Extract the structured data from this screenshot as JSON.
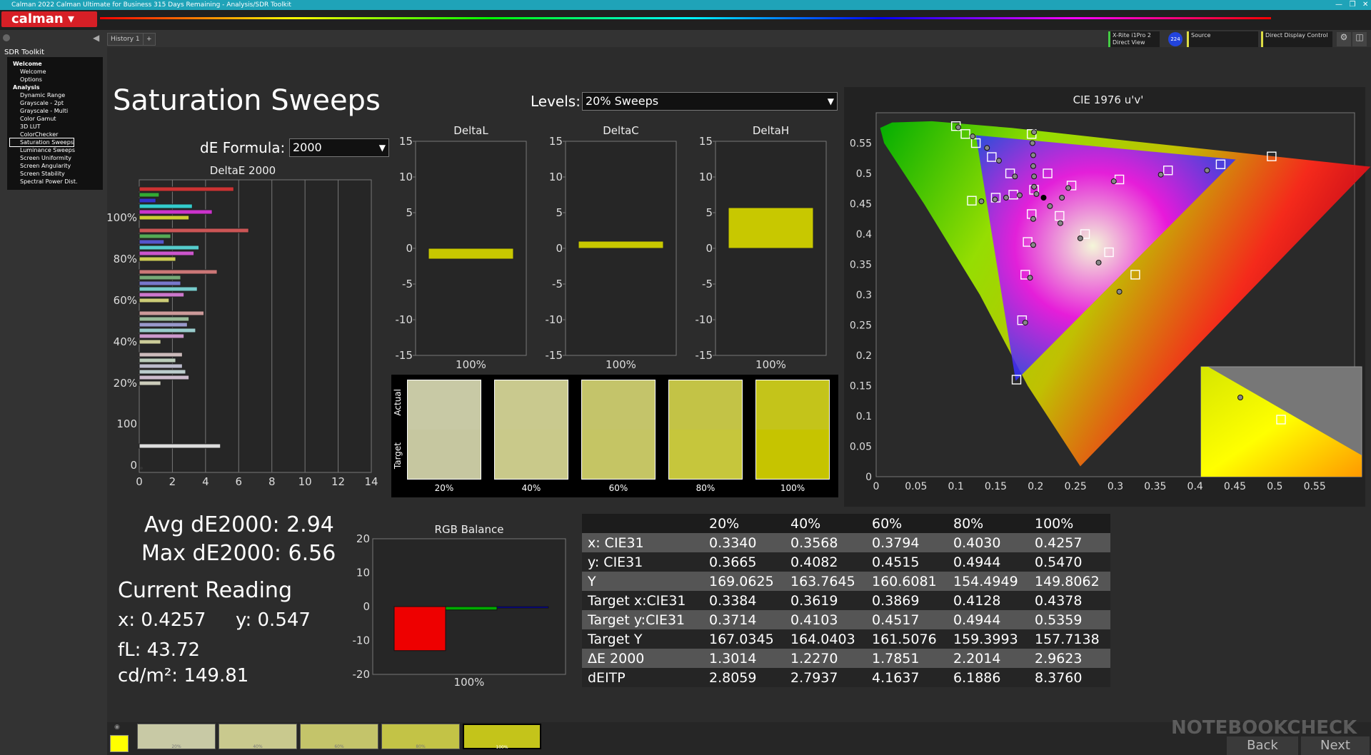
{
  "window": {
    "title": "Calman 2022 Calman Ultimate for Business 315 Days Remaining - Analysis/SDR Toolkit",
    "logo": "calman"
  },
  "toolbar": {
    "history_tab": "History 1",
    "devices": [
      {
        "line1": "X-Rite i1Pro 2",
        "line2": "Direct View",
        "badge": "224"
      },
      {
        "line1": "Source",
        "line2": ""
      },
      {
        "line1": "Direct Display Control",
        "line2": ""
      }
    ]
  },
  "sidebar": {
    "title": "SDR Toolkit",
    "items": [
      "Welcome",
      "Welcome",
      "Options",
      "Analysis",
      "Dynamic Range",
      "Grayscale - 2pt",
      "Grayscale - Multi",
      "Color Gamut",
      "3D LUT",
      "ColorChecker",
      "Saturation Sweeps",
      "Luminance Sweeps",
      "Screen Uniformity",
      "Screen Angularity",
      "Screen Stability",
      "Spectral Power Dist."
    ],
    "selected": "Saturation Sweeps"
  },
  "page": {
    "title": "Saturation Sweeps",
    "levels_label": "Levels:",
    "levels_value": "20% Sweeps",
    "de_formula_label": "dE Formula:",
    "de_formula_value": "2000"
  },
  "stats": {
    "avg": "Avg dE2000: 2.94",
    "max": "Max dE2000: 6.56",
    "current_title": "Current Reading",
    "x": "x: 0.4257",
    "y": "y: 0.547",
    "fl": "fL: 43.72",
    "cdm2": "cd/m²: 149.81"
  },
  "swatches": {
    "actual_label": "Actual",
    "target_label": "Target",
    "labels": [
      "20%",
      "40%",
      "60%",
      "80%",
      "100%"
    ],
    "actual_colors": [
      "#c8c9a5",
      "#c9c98e",
      "#c4c46a",
      "#c3c346",
      "#c4c41a"
    ],
    "target_colors": [
      "#c6c7a0",
      "#c9c98a",
      "#c5c564",
      "#c6c63c",
      "#c6c400"
    ]
  },
  "table": {
    "columns": [
      "20%",
      "40%",
      "60%",
      "80%",
      "100%"
    ],
    "rows": [
      {
        "label": "x: CIE31",
        "values": [
          "0.3340",
          "0.3568",
          "0.3794",
          "0.4030",
          "0.4257"
        ]
      },
      {
        "label": "y: CIE31",
        "values": [
          "0.3665",
          "0.4082",
          "0.4515",
          "0.4944",
          "0.5470"
        ]
      },
      {
        "label": "Y",
        "values": [
          "169.0625",
          "163.7645",
          "160.6081",
          "154.4949",
          "149.8062"
        ]
      },
      {
        "label": "Target x:CIE31",
        "values": [
          "0.3384",
          "0.3619",
          "0.3869",
          "0.4128",
          "0.4378"
        ]
      },
      {
        "label": "Target y:CIE31",
        "values": [
          "0.3714",
          "0.4103",
          "0.4517",
          "0.4944",
          "0.5359"
        ]
      },
      {
        "label": "Target Y",
        "values": [
          "167.0345",
          "164.0403",
          "161.5076",
          "159.3993",
          "157.7138"
        ]
      },
      {
        "label": "ΔE 2000",
        "values": [
          "1.3014",
          "1.2270",
          "1.7851",
          "2.2014",
          "2.9623"
        ]
      },
      {
        "label": "dEITP",
        "values": [
          "2.8059",
          "2.7937",
          "4.1637",
          "6.1886",
          "8.3760"
        ]
      }
    ]
  },
  "bottom": {
    "thumbs": [
      "20%",
      "40%",
      "60%",
      "80%",
      "100%"
    ],
    "thumb_colors": [
      "#c8c9a5",
      "#c9c98e",
      "#c4c46a",
      "#c3c346",
      "#c4c41a"
    ],
    "back": "Back",
    "next": "Next",
    "watermark": "NOTEBOOKCHECK"
  },
  "chart_data": [
    {
      "type": "bar",
      "title": "DeltaE 2000",
      "orientation": "horizontal",
      "xlim": [
        0,
        14
      ],
      "xticks": [
        "0",
        "2",
        "4",
        "6",
        "8",
        "10",
        "12",
        "14"
      ],
      "yticks": [
        "100%",
        "80%",
        "60%",
        "40%",
        "20%",
        "100",
        "0"
      ],
      "groups": [
        {
          "label": "100%",
          "values": [
            5.7,
            1.2,
            1.0,
            3.2,
            4.4,
            3.0
          ],
          "colors": [
            "#c33",
            "#3a3",
            "#33c",
            "#3cc",
            "#c3c",
            "#cc3"
          ]
        },
        {
          "label": "80%",
          "values": [
            6.6,
            1.9,
            1.5,
            3.6,
            3.3,
            2.2
          ],
          "colors": [
            "#c55",
            "#5a5",
            "#55c",
            "#5cc",
            "#c5c",
            "#cc5"
          ]
        },
        {
          "label": "60%",
          "values": [
            4.7,
            2.5,
            2.5,
            3.5,
            2.7,
            1.8
          ],
          "colors": [
            "#c77",
            "#7a7",
            "#77c",
            "#7cc",
            "#c7c",
            "#cc7"
          ]
        },
        {
          "label": "40%",
          "values": [
            3.9,
            3.0,
            2.9,
            3.4,
            2.7,
            1.3
          ],
          "colors": [
            "#c99",
            "#9b9",
            "#99c",
            "#9cc",
            "#c9c",
            "#cc9"
          ]
        },
        {
          "label": "20%",
          "values": [
            2.6,
            2.2,
            2.6,
            2.8,
            3.0,
            1.3
          ],
          "colors": [
            "#cbb",
            "#bcb",
            "#bbc",
            "#bcc",
            "#cbc",
            "#ccb"
          ]
        },
        {
          "label": "100",
          "values": [
            4.9
          ],
          "colors": [
            "#ddd"
          ]
        }
      ]
    },
    {
      "type": "bar",
      "title": "DeltaL",
      "categories": [
        "100%"
      ],
      "values": [
        -1.5
      ],
      "ylim": [
        -15,
        15
      ],
      "yticks": [
        "15",
        "10",
        "5",
        "0",
        "-5",
        "-10",
        "-15"
      ]
    },
    {
      "type": "bar",
      "title": "DeltaC",
      "categories": [
        "100%"
      ],
      "values": [
        1.0
      ],
      "ylim": [
        -15,
        15
      ],
      "yticks": [
        "15",
        "10",
        "5",
        "0",
        "-5",
        "-10",
        "-15"
      ]
    },
    {
      "type": "bar",
      "title": "DeltaH",
      "categories": [
        "100%"
      ],
      "values": [
        5.7
      ],
      "ylim": [
        -15,
        15
      ],
      "yticks": [
        "15",
        "10",
        "5",
        "0",
        "-5",
        "-10",
        "-15"
      ]
    },
    {
      "type": "bar",
      "title": "RGB Balance",
      "categories": [
        "100%"
      ],
      "series": [
        {
          "values": [
            -13
          ],
          "color": "#e00"
        },
        {
          "values": [
            -1
          ],
          "color": "#0a0"
        },
        {
          "values": [
            0
          ],
          "color": "#00c"
        }
      ],
      "ylim": [
        -20,
        20
      ],
      "yticks": [
        "20",
        "10",
        "0",
        "-10",
        "-20"
      ]
    },
    {
      "type": "scatter",
      "title": "CIE 1976 u'v'",
      "xlim": [
        0,
        0.6
      ],
      "ylim": [
        0,
        0.6
      ],
      "xticks": [
        "0",
        "0.05",
        "0.1",
        "0.15",
        "0.2",
        "0.25",
        "0.3",
        "0.35",
        "0.4",
        "0.45",
        "0.5",
        "0.55"
      ],
      "yticks": [
        "0",
        "0.05",
        "0.1",
        "0.15",
        "0.2",
        "0.25",
        "0.3",
        "0.35",
        "0.4",
        "0.45",
        "0.5",
        "0.55"
      ],
      "targets": [
        [
          0.1,
          0.578
        ],
        [
          0.112,
          0.565
        ],
        [
          0.125,
          0.55
        ],
        [
          0.145,
          0.527
        ],
        [
          0.168,
          0.5
        ],
        [
          0.195,
          0.565
        ],
        [
          0.215,
          0.5
        ],
        [
          0.245,
          0.48
        ],
        [
          0.305,
          0.49
        ],
        [
          0.366,
          0.505
        ],
        [
          0.432,
          0.515
        ],
        [
          0.496,
          0.528
        ],
        [
          0.12,
          0.455
        ],
        [
          0.15,
          0.46
        ],
        [
          0.172,
          0.465
        ],
        [
          0.198,
          0.473
        ],
        [
          0.195,
          0.433
        ],
        [
          0.19,
          0.387
        ],
        [
          0.187,
          0.333
        ],
        [
          0.183,
          0.258
        ],
        [
          0.176,
          0.16
        ],
        [
          0.23,
          0.43
        ],
        [
          0.262,
          0.4
        ],
        [
          0.292,
          0.37
        ],
        [
          0.325,
          0.333
        ]
      ],
      "measured": [
        [
          0.103,
          0.576
        ],
        [
          0.121,
          0.561
        ],
        [
          0.139,
          0.542
        ],
        [
          0.154,
          0.521
        ],
        [
          0.174,
          0.495
        ],
        [
          0.198,
          0.568
        ],
        [
          0.196,
          0.55
        ],
        [
          0.197,
          0.53
        ],
        [
          0.197,
          0.512
        ],
        [
          0.198,
          0.495
        ],
        [
          0.198,
          0.478
        ],
        [
          0.241,
          0.476
        ],
        [
          0.298,
          0.487
        ],
        [
          0.357,
          0.498
        ],
        [
          0.415,
          0.505
        ],
        [
          0.132,
          0.454
        ],
        [
          0.149,
          0.457
        ],
        [
          0.163,
          0.46
        ],
        [
          0.18,
          0.464
        ],
        [
          0.201,
          0.466
        ],
        [
          0.218,
          0.446
        ],
        [
          0.197,
          0.425
        ],
        [
          0.197,
          0.382
        ],
        [
          0.193,
          0.328
        ],
        [
          0.187,
          0.254
        ],
        [
          0.231,
          0.418
        ],
        [
          0.256,
          0.393
        ],
        [
          0.279,
          0.353
        ],
        [
          0.305,
          0.305
        ],
        [
          0.233,
          0.46
        ]
      ],
      "inset_points": [
        [
          0.4378,
          0.5359
        ],
        [
          0.4257,
          0.547
        ]
      ]
    }
  ]
}
